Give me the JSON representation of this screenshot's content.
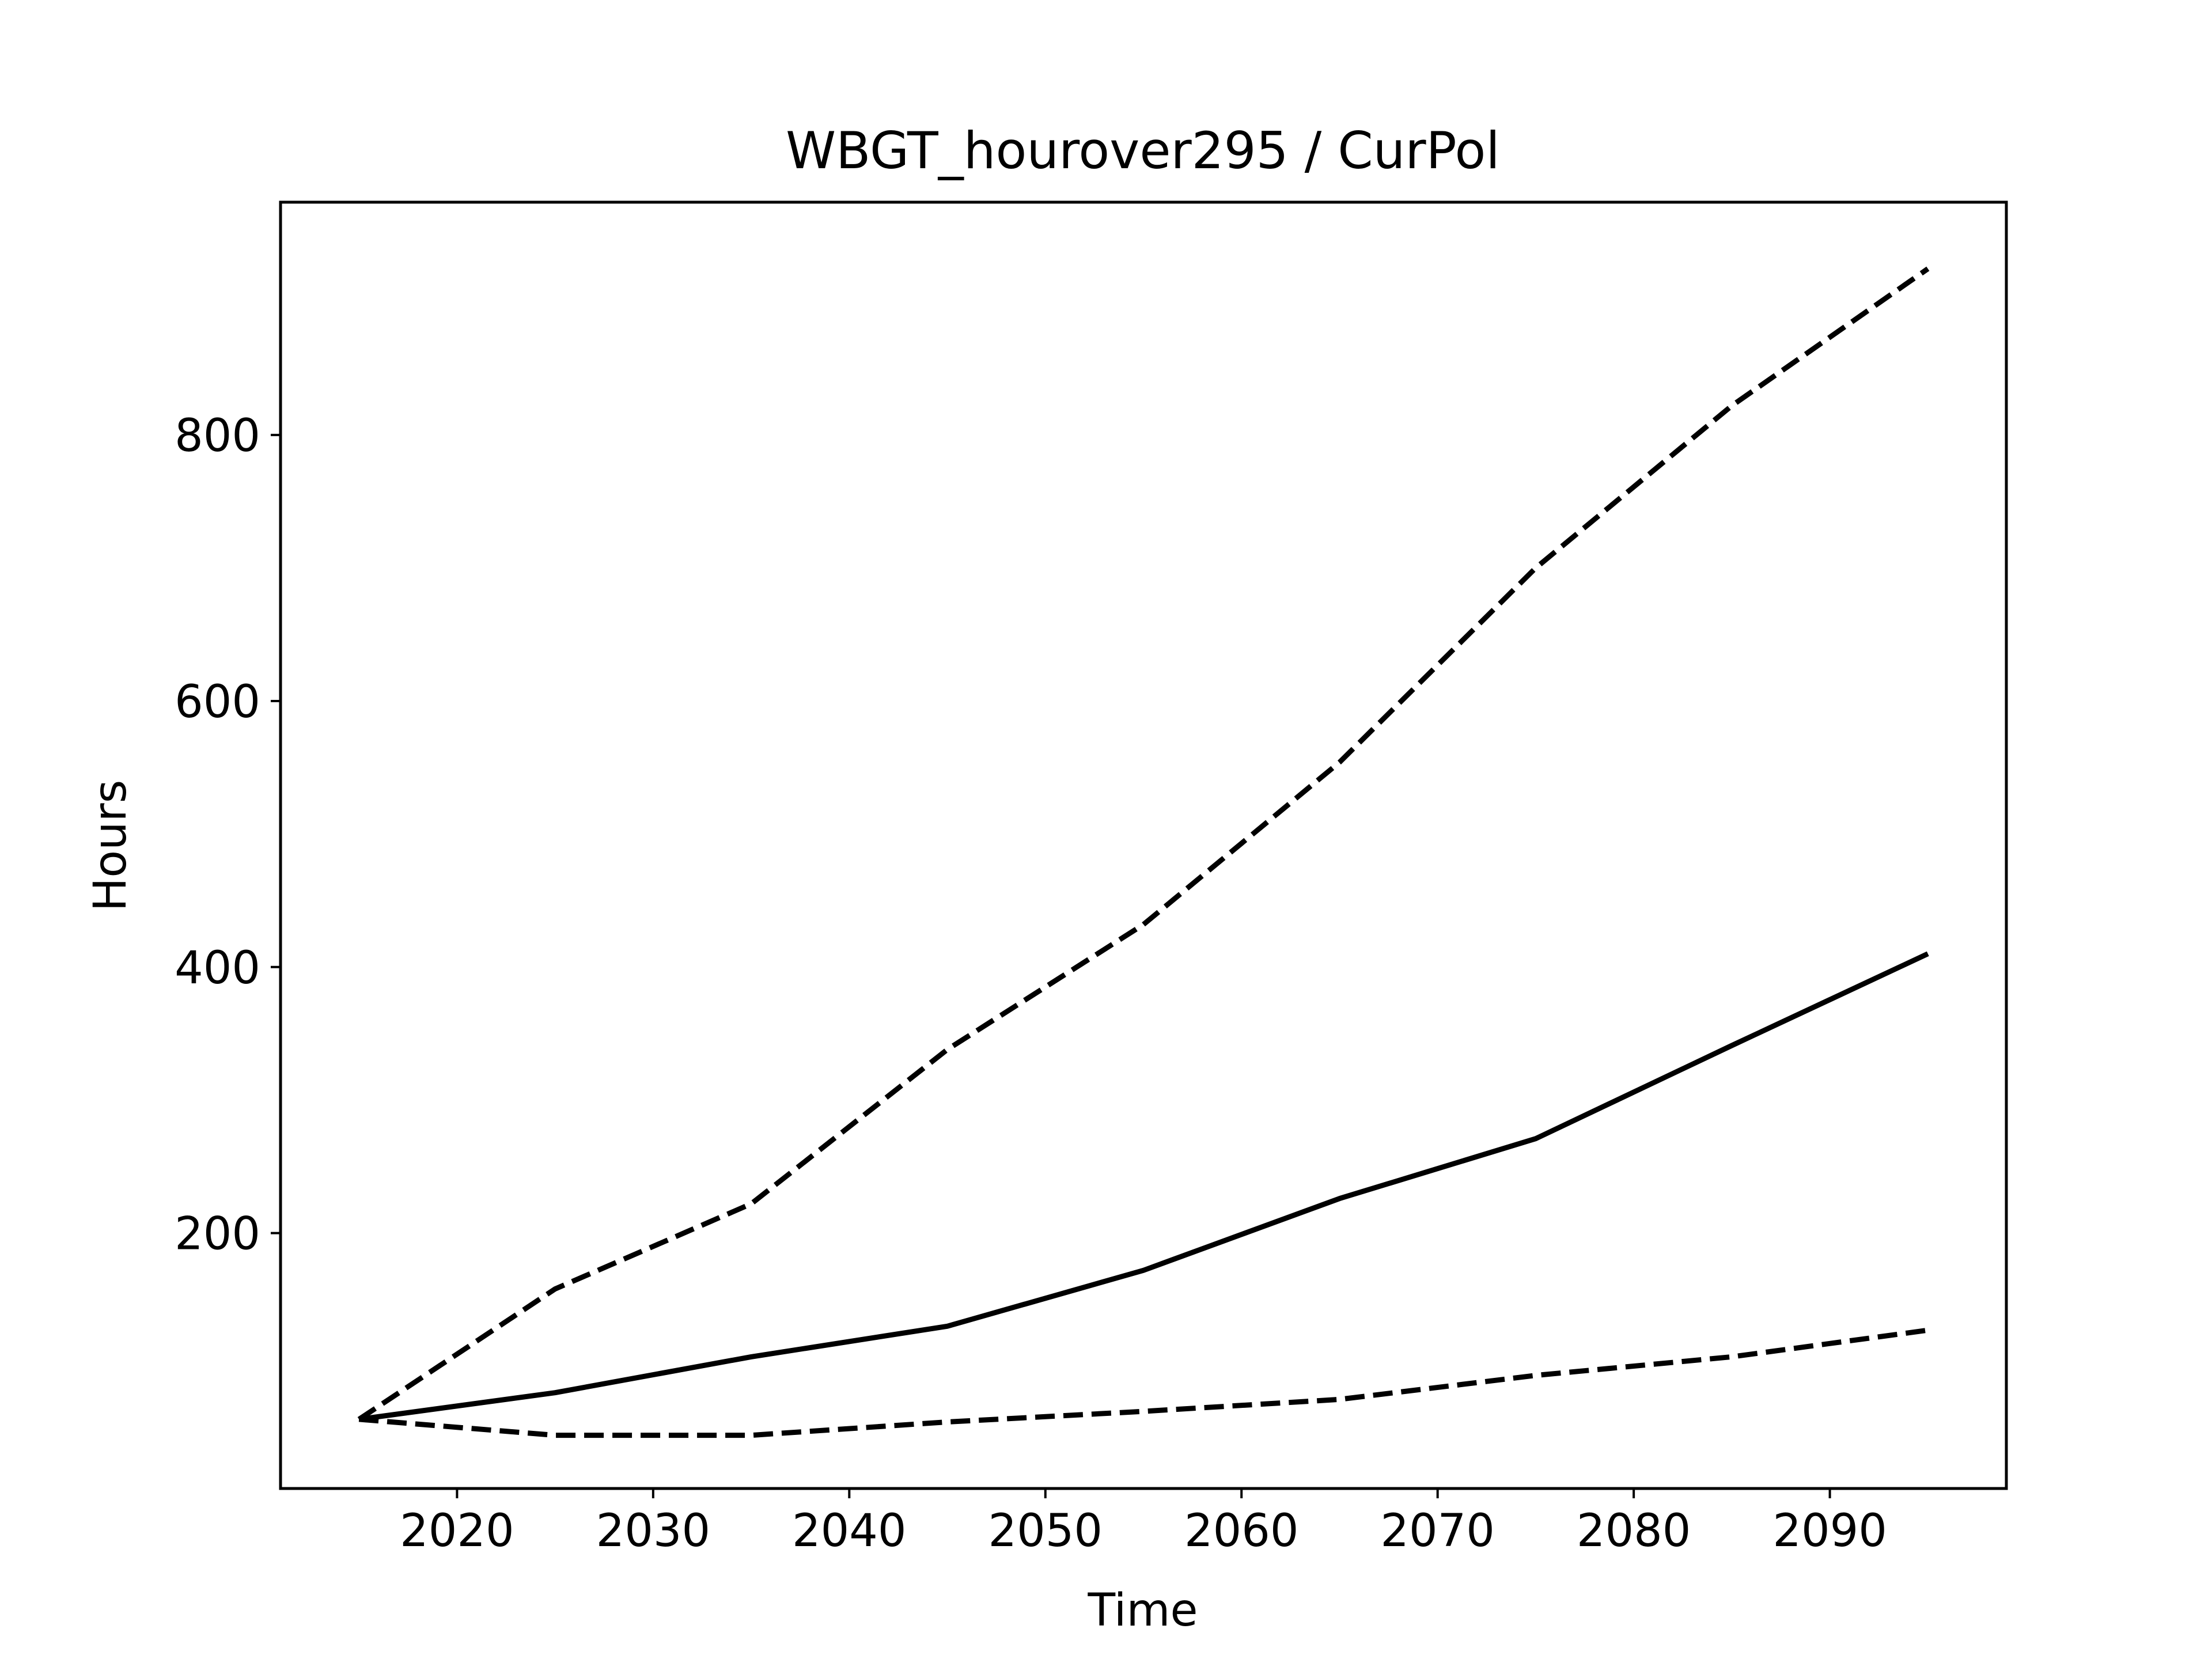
{
  "chart_data": {
    "type": "line",
    "title": "WBGT_hourover295 / CurPol",
    "xlabel": "Time",
    "ylabel": "Hours",
    "xlim": [
      2011,
      2099
    ],
    "ylim": [
      8,
      975
    ],
    "xticks": [
      2020,
      2030,
      2040,
      2050,
      2060,
      2070,
      2080,
      2090
    ],
    "yticks": [
      200,
      400,
      600,
      800
    ],
    "grid": false,
    "legend": "none",
    "x": [
      2015,
      2025,
      2035,
      2045,
      2055,
      2065,
      2075,
      2085,
      2095
    ],
    "series": [
      {
        "style": "dashed",
        "color": "#000000",
        "values": [
          60,
          158,
          222,
          338,
          432,
          554,
          700,
          822,
          925
        ]
      },
      {
        "style": "solid",
        "color": "#000000",
        "values": [
          60,
          80,
          107,
          130,
          172,
          226,
          271,
          341,
          410
        ]
      },
      {
        "style": "dashed",
        "color": "#000000",
        "values": [
          60,
          48,
          48,
          58,
          66,
          75,
          93,
          107,
          127
        ]
      }
    ]
  }
}
